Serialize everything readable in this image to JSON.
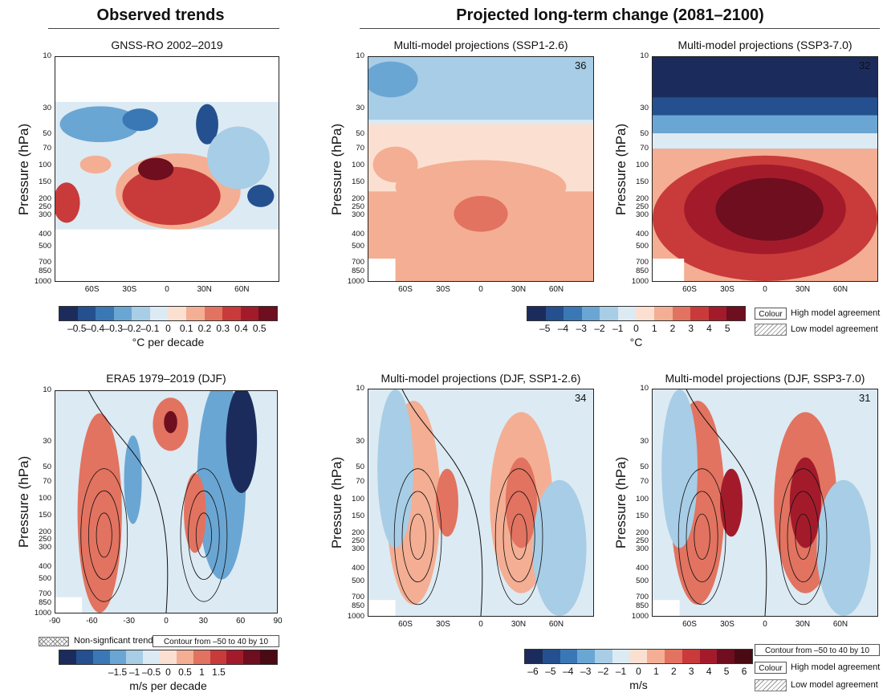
{
  "headers": {
    "observed": "Observed trends",
    "projected": "Projected long-term change (2081–2100)"
  },
  "y_axis_label": "Pressure (hPa)",
  "pressure_ticks": [
    "10",
    "30",
    "50",
    "70",
    "100",
    "150",
    "200",
    "250",
    "300",
    "400",
    "500",
    "700",
    "850",
    "1000"
  ],
  "lat_ticks_top": [
    "60S",
    "30S",
    "0",
    "30N",
    "60N"
  ],
  "lat_ticks_era5": [
    "-90",
    "-60",
    "-30",
    "0",
    "30",
    "60",
    "90"
  ],
  "colors": {
    "temp_scale": [
      "#1b2c5c",
      "#24508f",
      "#3a78b5",
      "#6aa6d3",
      "#a8cde6",
      "#dceaf3",
      "#fbe0d1",
      "#f4ae93",
      "#e27360",
      "#c83b3a",
      "#a31b2b",
      "#6e0e1e"
    ],
    "wind_scale": [
      "#1b2c5c",
      "#24508f",
      "#3a78b5",
      "#6aa6d3",
      "#a8cde6",
      "#dceaf3",
      "#fbe0d1",
      "#f4ae93",
      "#e27360",
      "#c83b3a",
      "#a31b2b",
      "#6e0e1e",
      "#4a0a14"
    ]
  },
  "colorbars": {
    "obs_temp": {
      "ticks": [
        "–0.5",
        "–0.4",
        "–0.3",
        "–0.2",
        "–0.1",
        "0",
        "0.1",
        "0.2",
        "0.3",
        "0.4",
        "0.5"
      ],
      "unit": "°C per decade"
    },
    "proj_temp": {
      "ticks": [
        "–5",
        "–4",
        "–3",
        "–2",
        "–1",
        "0",
        "1",
        "2",
        "3",
        "4",
        "5"
      ],
      "unit": "°C"
    },
    "obs_wind": {
      "ticks": [
        "–1.5",
        "–1",
        "–0.5",
        "0",
        "0.5",
        "1",
        "1.5"
      ],
      "unit": "m/s per decade"
    },
    "proj_wind": {
      "ticks": [
        "–6",
        "–5",
        "–4",
        "–3",
        "–2",
        "–1",
        "0",
        "1",
        "2",
        "3",
        "4",
        "5",
        "6"
      ],
      "unit": "m/s"
    }
  },
  "legend": {
    "colour": "Colour",
    "high_agreement": "High model agreement",
    "low_agreement": "Low model agreement",
    "non_significant": "Non-signficant trend",
    "contour": "Contour from –50 to 40 by 10"
  },
  "panels": [
    {
      "id": "gnss",
      "title": "GNSS-RO 2002–2019",
      "model_count": ""
    },
    {
      "id": "ssp126_t",
      "title": "Multi-model projections (SSP1-2.6)",
      "model_count": "36"
    },
    {
      "id": "ssp370_t",
      "title": "Multi-model projections (SSP3-7.0)",
      "model_count": "32"
    },
    {
      "id": "era5",
      "title": "ERA5 1979–2019 (DJF)",
      "model_count": ""
    },
    {
      "id": "ssp126_u",
      "title": "Multi-model projections (DJF, SSP1-2.6)",
      "model_count": "34"
    },
    {
      "id": "ssp370_u",
      "title": "Multi-model projections (DJF, SSP3-7.0)",
      "model_count": "31"
    }
  ],
  "chart_data": [
    {
      "type": "heatmap",
      "title": "GNSS-RO 2002–2019",
      "ylabel": "Pressure (hPa)",
      "xlabel": "",
      "x_ticks": [
        "60S",
        "30S",
        "0",
        "30N",
        "60N"
      ],
      "y_ticks": [
        "10",
        "30",
        "50",
        "70",
        "100",
        "150",
        "200",
        "250",
        "300",
        "400",
        "500",
        "700",
        "850",
        "1000"
      ],
      "colorbar": {
        "values": [
          -0.5,
          -0.4,
          -0.3,
          -0.2,
          -0.1,
          0,
          0.1,
          0.2,
          0.3,
          0.4,
          0.5
        ],
        "unit": "°C per decade"
      },
      "data_coverage_hPa": [
        30,
        350
      ]
    },
    {
      "type": "heatmap",
      "title": "Multi-model projections (SSP1-2.6)",
      "ylabel": "Pressure (hPa)",
      "x_ticks": [
        "60S",
        "30S",
        "0",
        "30N",
        "60N"
      ],
      "colorbar": {
        "values": [
          -5,
          -4,
          -3,
          -2,
          -1,
          0,
          1,
          2,
          3,
          4,
          5
        ],
        "unit": "°C"
      },
      "annotation": "36"
    },
    {
      "type": "heatmap",
      "title": "Multi-model projections (SSP3-7.0)",
      "ylabel": "Pressure (hPa)",
      "x_ticks": [
        "60S",
        "30S",
        "0",
        "30N",
        "60N"
      ],
      "colorbar": {
        "values": [
          -5,
          -4,
          -3,
          -2,
          -1,
          0,
          1,
          2,
          3,
          4,
          5
        ],
        "unit": "°C"
      },
      "annotation": "32"
    },
    {
      "type": "heatmap",
      "title": "ERA5 1979–2019 (DJF)",
      "ylabel": "Pressure (hPa)",
      "x_ticks": [
        -90,
        -60,
        -30,
        0,
        30,
        60,
        90
      ],
      "colorbar": {
        "values": [
          -1.5,
          -1,
          -0.5,
          0,
          0.5,
          1,
          1.5
        ],
        "unit": "m/s per decade"
      },
      "contour": "Contour from –50 to 40 by 10"
    },
    {
      "type": "heatmap",
      "title": "Multi-model projections (DJF, SSP1-2.6)",
      "ylabel": "Pressure (hPa)",
      "x_ticks": [
        "60S",
        "30S",
        "0",
        "30N",
        "60N"
      ],
      "colorbar": {
        "values": [
          -6,
          -5,
          -4,
          -3,
          -2,
          -1,
          0,
          1,
          2,
          3,
          4,
          5,
          6
        ],
        "unit": "m/s"
      },
      "annotation": "34"
    },
    {
      "type": "heatmap",
      "title": "Multi-model projections (DJF, SSP3-7.0)",
      "ylabel": "Pressure (hPa)",
      "x_ticks": [
        "60S",
        "30S",
        "0",
        "30N",
        "60N"
      ],
      "colorbar": {
        "values": [
          -6,
          -5,
          -4,
          -3,
          -2,
          -1,
          0,
          1,
          2,
          3,
          4,
          5,
          6
        ],
        "unit": "m/s"
      },
      "annotation": "31"
    }
  ]
}
